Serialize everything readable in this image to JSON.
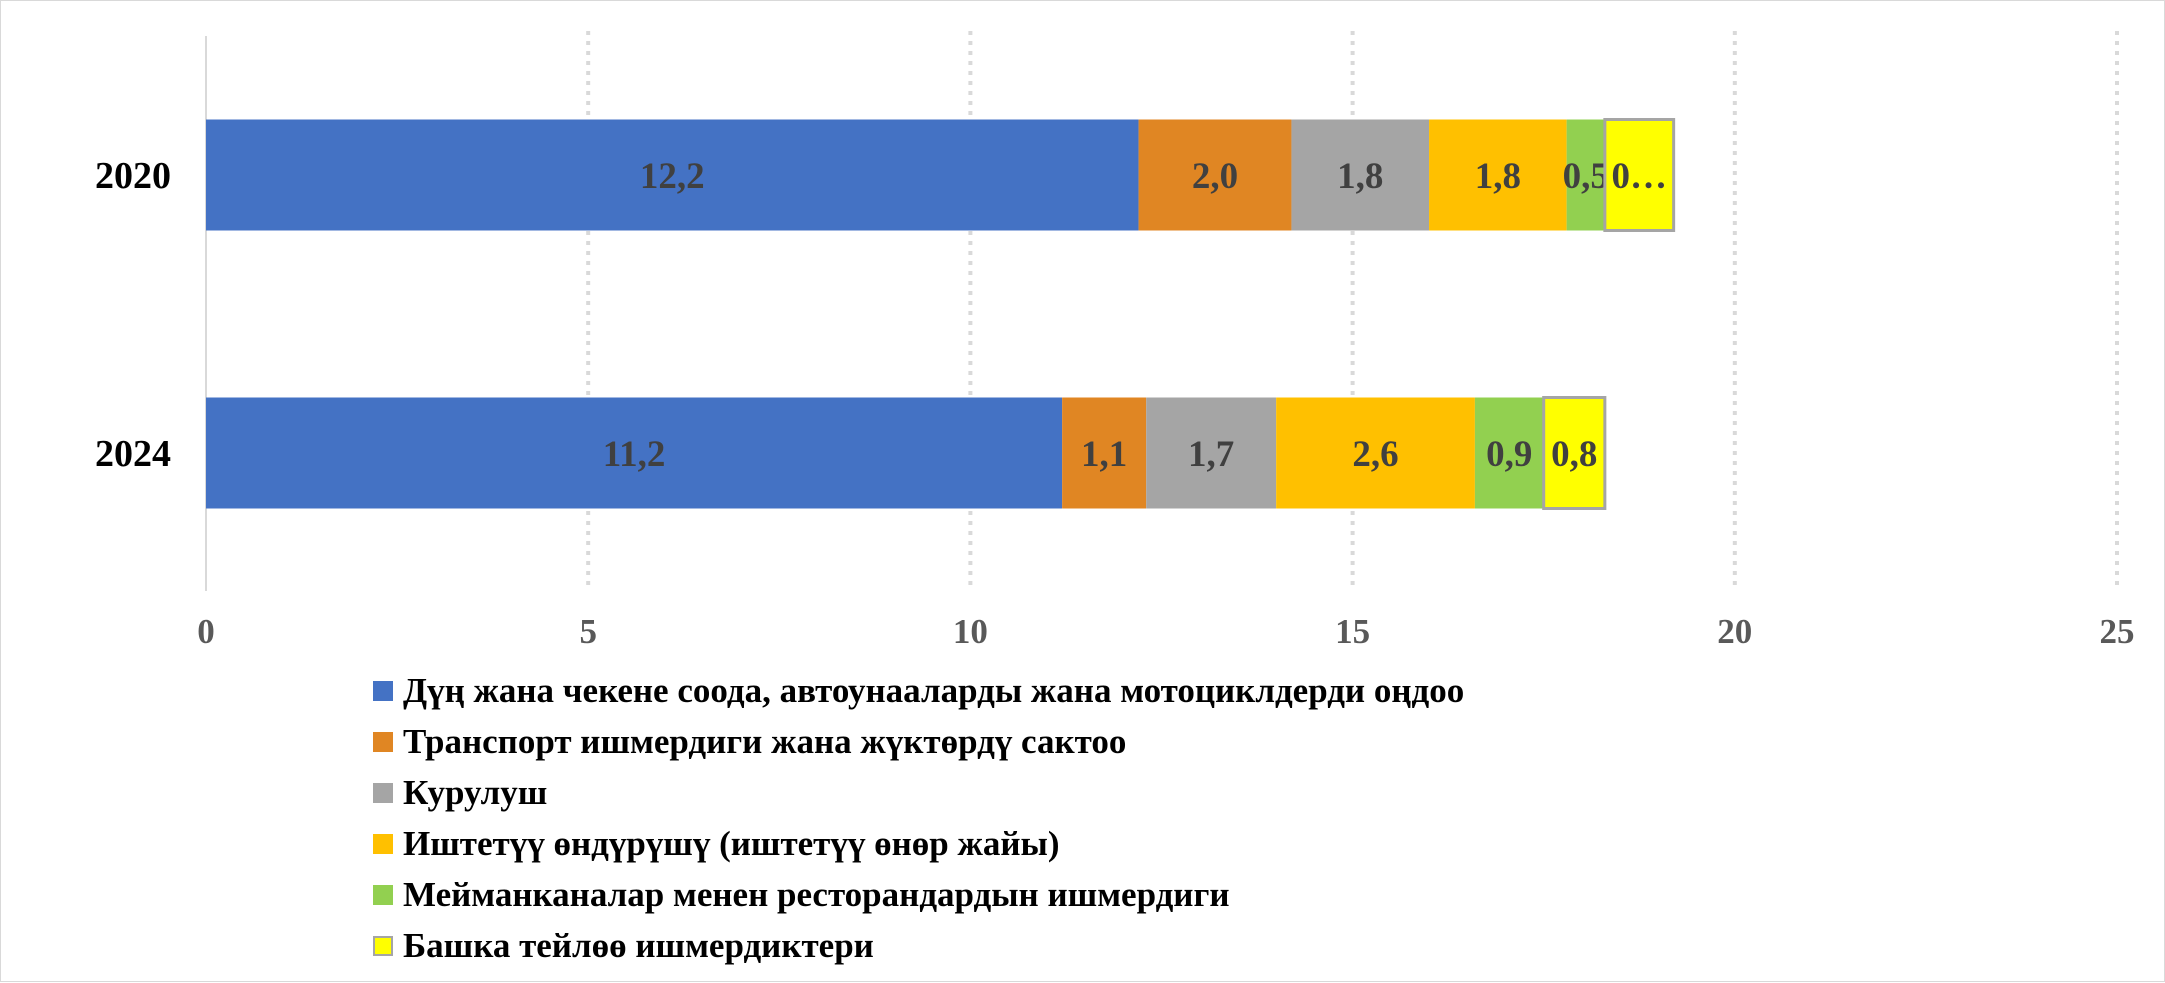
{
  "chart_data": {
    "type": "bar",
    "orientation": "horizontal",
    "stacked": true,
    "title": "",
    "xlabel": "",
    "ylabel": "",
    "xlim": [
      0,
      25
    ],
    "x_ticks": [
      "0",
      "5",
      "10",
      "15",
      "20",
      "25"
    ],
    "grid": true,
    "legend_position": "bottom",
    "categories": [
      "2020",
      "2024"
    ],
    "series": [
      {
        "name": "Дүң жана чекене соода, автоунааларды жана мотоциклдерди оңдоо",
        "color": "#4472c4",
        "values": [
          12.2,
          11.2
        ],
        "labels": [
          "12,2",
          "11,2"
        ]
      },
      {
        "name": "Транспорт ишмердиги жана жүктөрдү сактоо",
        "color": "#e08623",
        "values": [
          2.0,
          1.1
        ],
        "labels": [
          "2,0",
          "1,1"
        ]
      },
      {
        "name": "Курулуш",
        "color": "#a5a5a5",
        "values": [
          1.8,
          1.7
        ],
        "labels": [
          "1,8",
          "1,7"
        ]
      },
      {
        "name": "Иштетүү өндүрүшү (иштетүү өнөр жайы)",
        "color": "#ffc000",
        "values": [
          1.8,
          2.6
        ],
        "labels": [
          "1,8",
          "2,6"
        ]
      },
      {
        "name": "Мейманканалар менен ресторандардын ишмердиги",
        "color": "#92d050",
        "values": [
          0.5,
          0.9
        ],
        "labels": [
          "0,5",
          "0,9"
        ]
      },
      {
        "name": "Башка тейлөө ишмердиктери",
        "color": "#ffff00",
        "border": "#a5a5a5",
        "values": [
          0.9,
          0.8
        ],
        "labels": [
          "0…",
          "0,8"
        ]
      }
    ]
  }
}
